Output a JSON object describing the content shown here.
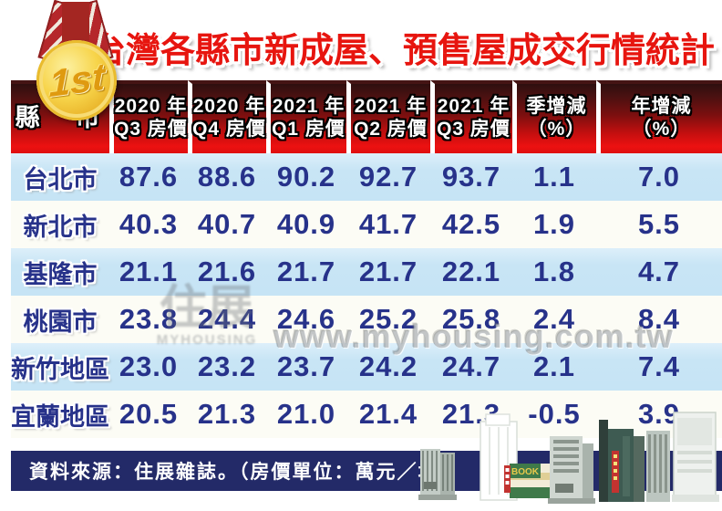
{
  "title": "北台灣各縣市新成屋、預售屋成交行情統計",
  "medal": {
    "rank_label": "1st"
  },
  "watermark": {
    "logo_cjk": "住展",
    "logo_en": "MYHOUSING",
    "site_url": "www.myhousing.com.tw"
  },
  "footer": {
    "source_note": "資料來源：住展雜誌。（房價單位：萬元／坪）"
  },
  "illustration": {
    "book_sign": "BOOK"
  },
  "colors": {
    "title_red": "#e7150f",
    "header_gradient_bottom": "#ec1111",
    "row_blue": "#c8e5f5",
    "row_white": "#fcfcf5",
    "value_navy": "#27328a",
    "footer_navy": "#232a68"
  },
  "chart_data": {
    "type": "table",
    "title": "北台灣各縣市新成屋、預售屋成交行情統計",
    "source": "住展雜誌",
    "unit_note": "房價單位：萬元／坪",
    "columns": [
      {
        "line1": "縣　市",
        "line2": ""
      },
      {
        "line1": "2020 年",
        "line2": "Q3 房價"
      },
      {
        "line1": "2020 年",
        "line2": "Q4 房價"
      },
      {
        "line1": "2021 年",
        "line2": "Q1 房價"
      },
      {
        "line1": "2021 年",
        "line2": "Q2 房價"
      },
      {
        "line1": "2021 年",
        "line2": "Q3 房價"
      },
      {
        "line1": "季增減",
        "line2": "（%）"
      },
      {
        "line1": "年增減",
        "line2": "（%）"
      }
    ],
    "rows": [
      {
        "region": "台北市",
        "values": [
          "87.6",
          "88.6",
          "90.2",
          "92.7",
          "93.7",
          "1.1",
          "7.0"
        ]
      },
      {
        "region": "新北市",
        "values": [
          "40.3",
          "40.7",
          "40.9",
          "41.7",
          "42.5",
          "1.9",
          "5.5"
        ]
      },
      {
        "region": "基隆市",
        "values": [
          "21.1",
          "21.6",
          "21.7",
          "21.7",
          "22.1",
          "1.8",
          "4.7"
        ]
      },
      {
        "region": "桃園市",
        "values": [
          "23.8",
          "24.4",
          "24.6",
          "25.2",
          "25.8",
          "2.4",
          "8.4"
        ]
      },
      {
        "region": "新竹地區",
        "values": [
          "23.0",
          "23.2",
          "23.7",
          "24.2",
          "24.7",
          "2.1",
          "7.4"
        ]
      },
      {
        "region": "宜蘭地區",
        "values": [
          "20.5",
          "21.3",
          "21.0",
          "21.4",
          "21.3",
          "-0.5",
          "3.9"
        ]
      }
    ]
  }
}
